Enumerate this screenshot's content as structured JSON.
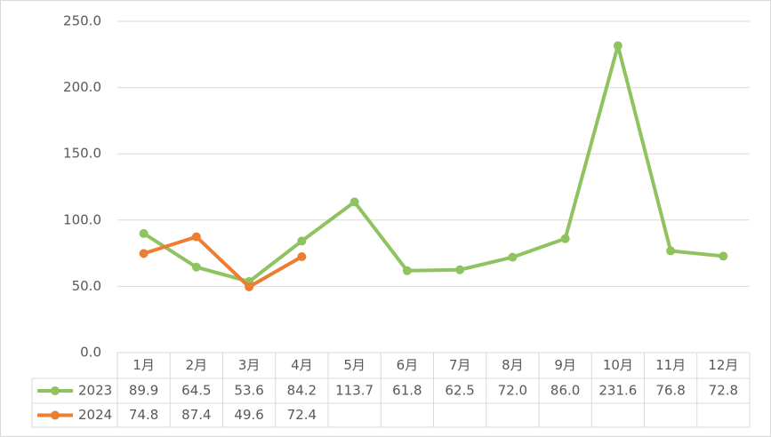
{
  "chart_data": {
    "type": "line",
    "categories": [
      "1月",
      "2月",
      "3月",
      "4月",
      "5月",
      "6月",
      "7月",
      "8月",
      "9月",
      "10月",
      "11月",
      "12月"
    ],
    "series": [
      {
        "name": "2023",
        "color": "#8fc35f",
        "values": [
          89.9,
          64.5,
          53.6,
          84.2,
          113.7,
          61.8,
          62.5,
          72.0,
          86.0,
          231.6,
          76.8,
          72.8
        ],
        "value_labels": [
          "89.9",
          "64.5",
          "53.6",
          "84.2",
          "113.7",
          "61.8",
          "62.5",
          "72.0",
          "86.0",
          "231.6",
          "76.8",
          "72.8"
        ]
      },
      {
        "name": "2024",
        "color": "#ed7d31",
        "values": [
          74.8,
          87.4,
          49.6,
          72.4,
          null,
          null,
          null,
          null,
          null,
          null,
          null,
          null
        ],
        "value_labels": [
          "74.8",
          "87.4",
          "49.6",
          "72.4",
          null,
          null,
          null,
          null,
          null,
          null,
          null,
          null
        ]
      }
    ],
    "ylim": [
      0,
      250
    ],
    "yticks": [
      {
        "value": 0,
        "label": "0.0"
      },
      {
        "value": 50,
        "label": "50.0"
      },
      {
        "value": 100,
        "label": "100.0"
      },
      {
        "value": 150,
        "label": "150.0"
      },
      {
        "value": 200,
        "label": "200.0"
      },
      {
        "value": 250,
        "label": "250.0"
      }
    ],
    "grid": true,
    "legend": "table"
  }
}
